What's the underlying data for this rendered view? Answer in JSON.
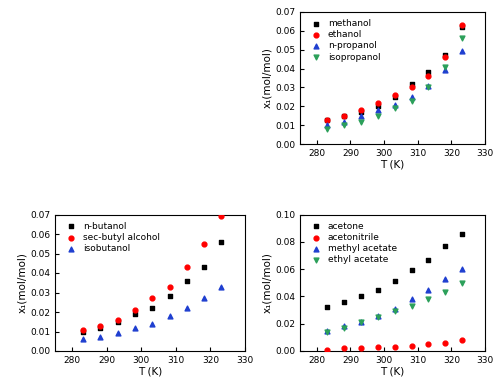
{
  "chart_data": [
    {
      "type": "scatter",
      "xlabel": "T (K)",
      "ylabel": "x₁(mol/mol)",
      "x": [
        283.15,
        288.15,
        293.15,
        298.15,
        303.15,
        308.15,
        313.15,
        318.15,
        323.15
      ],
      "xlim": [
        275,
        330
      ],
      "xticks": [
        280,
        290,
        300,
        310,
        320,
        330
      ],
      "ylim": [
        0,
        0.07
      ],
      "yticks": [
        {
          "value": 0,
          "label": "0.00"
        },
        {
          "value": 0.01,
          "label": "0.01"
        },
        {
          "value": 0.02,
          "label": "0.02"
        },
        {
          "value": 0.03,
          "label": "0.03"
        },
        {
          "value": 0.04,
          "label": "0.04"
        },
        {
          "value": 0.05,
          "label": "0.05"
        },
        {
          "value": 0.06,
          "label": "0.06"
        },
        {
          "value": 0.07,
          "label": "0.07"
        }
      ],
      "legend": "upper left",
      "series": [
        {
          "name": "methanol",
          "color": "#000000",
          "marker": "square",
          "values": [
            0.013,
            0.015,
            0.017,
            0.02,
            0.025,
            0.032,
            0.038,
            0.047,
            0.062
          ]
        },
        {
          "name": "ethanol",
          "color": "#ff0000",
          "marker": "circle",
          "values": [
            0.013,
            0.015,
            0.018,
            0.022,
            0.026,
            0.03,
            0.036,
            0.046,
            0.063
          ]
        },
        {
          "name": "n-propanol",
          "color": "#1f3fd0",
          "marker": "triangle_up",
          "values": [
            0.01,
            0.012,
            0.015,
            0.018,
            0.021,
            0.025,
            0.031,
            0.039,
            0.049
          ]
        },
        {
          "name": "isopropanol",
          "color": "#2ca05a",
          "marker": "triangle_down",
          "values": [
            0.008,
            0.01,
            0.012,
            0.015,
            0.019,
            0.023,
            0.03,
            0.041,
            0.056
          ]
        }
      ]
    },
    {
      "type": "scatter",
      "xlabel": "T (K)",
      "ylabel": "x₁(mol/mol)",
      "x": [
        283.15,
        288.15,
        293.15,
        298.15,
        303.15,
        308.15,
        313.15,
        318.15,
        323.15
      ],
      "xlim": [
        275,
        330
      ],
      "xticks": [
        280,
        290,
        300,
        310,
        320,
        330
      ],
      "ylim": [
        0,
        0.07
      ],
      "yticks": [
        {
          "value": 0,
          "label": "0.00"
        },
        {
          "value": 0.01,
          "label": "0.01"
        },
        {
          "value": 0.02,
          "label": "0.02"
        },
        {
          "value": 0.03,
          "label": "0.03"
        },
        {
          "value": 0.04,
          "label": "0.04"
        },
        {
          "value": 0.05,
          "label": "0.05"
        },
        {
          "value": 0.06,
          "label": "0.06"
        },
        {
          "value": 0.07,
          "label": "0.07"
        }
      ],
      "legend": "upper left",
      "series": [
        {
          "name": "n-butanol",
          "color": "#000000",
          "marker": "square",
          "values": [
            0.01,
            0.012,
            0.015,
            0.019,
            0.022,
            0.028,
            0.036,
            0.043,
            0.056
          ]
        },
        {
          "name": "sec-butyl alcohol",
          "color": "#ff0000",
          "marker": "circle",
          "values": [
            0.011,
            0.013,
            0.016,
            0.021,
            0.027,
            0.033,
            0.043,
            0.055,
            0.069
          ]
        },
        {
          "name": "isobutanol",
          "color": "#1f3fd0",
          "marker": "triangle_up",
          "values": [
            0.006,
            0.007,
            0.009,
            0.012,
            0.014,
            0.018,
            0.022,
            0.027,
            0.033
          ]
        }
      ]
    },
    {
      "type": "scatter",
      "xlabel": "T (K)",
      "ylabel": "x₁(mol/mol)",
      "x": [
        283.15,
        288.15,
        293.15,
        298.15,
        303.15,
        308.15,
        313.15,
        318.15,
        323.15
      ],
      "xlim": [
        275,
        330
      ],
      "xticks": [
        280,
        290,
        300,
        310,
        320,
        330
      ],
      "ylim": [
        0,
        0.1
      ],
      "yticks": [
        {
          "value": 0,
          "label": "0.00"
        },
        {
          "value": 0.02,
          "label": "0.02"
        },
        {
          "value": 0.04,
          "label": "0.04"
        },
        {
          "value": 0.06,
          "label": "0.06"
        },
        {
          "value": 0.08,
          "label": "0.08"
        },
        {
          "value": 0.1,
          "label": "0.10"
        }
      ],
      "legend": "upper left",
      "series": [
        {
          "name": "acetone",
          "color": "#000000",
          "marker": "square",
          "values": [
            0.032,
            0.036,
            0.04,
            0.045,
            0.051,
            0.059,
            0.067,
            0.077,
            0.086
          ]
        },
        {
          "name": "acetonitrile",
          "color": "#ff0000",
          "marker": "circle",
          "values": [
            0.001,
            0.002,
            0.002,
            0.003,
            0.003,
            0.004,
            0.005,
            0.006,
            0.008
          ]
        },
        {
          "name": "methyl acetate",
          "color": "#1f3fd0",
          "marker": "triangle_up",
          "values": [
            0.015,
            0.018,
            0.021,
            0.026,
            0.031,
            0.038,
            0.045,
            0.053,
            0.06
          ]
        },
        {
          "name": "ethyl acetate",
          "color": "#2ca05a",
          "marker": "triangle_down",
          "values": [
            0.014,
            0.017,
            0.021,
            0.025,
            0.029,
            0.033,
            0.038,
            0.043,
            0.05
          ]
        }
      ]
    }
  ]
}
